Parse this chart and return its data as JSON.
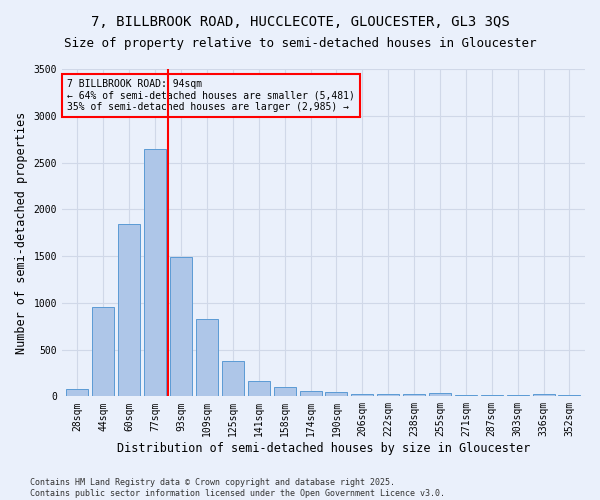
{
  "title_line1": "7, BILLBROOK ROAD, HUCCLECOTE, GLOUCESTER, GL3 3QS",
  "title_line2": "Size of property relative to semi-detached houses in Gloucester",
  "xlabel": "Distribution of semi-detached houses by size in Gloucester",
  "ylabel": "Number of semi-detached properties",
  "footnote": "Contains HM Land Registry data © Crown copyright and database right 2025.\nContains public sector information licensed under the Open Government Licence v3.0.",
  "bin_labels": [
    "28sqm",
    "44sqm",
    "60sqm",
    "77sqm",
    "93sqm",
    "109sqm",
    "125sqm",
    "141sqm",
    "158sqm",
    "174sqm",
    "190sqm",
    "206sqm",
    "222sqm",
    "238sqm",
    "255sqm",
    "271sqm",
    "287sqm",
    "303sqm",
    "336sqm",
    "352sqm"
  ],
  "bar_values": [
    80,
    950,
    1840,
    2640,
    1490,
    830,
    380,
    165,
    100,
    55,
    45,
    30,
    25,
    20,
    40,
    10,
    10,
    10,
    30,
    10
  ],
  "bar_color": "#aec6e8",
  "bar_edge_color": "#5b9bd5",
  "grid_color": "#d0d8e8",
  "background_color": "#eaf0fb",
  "vline_color": "red",
  "vline_pos": 3.5,
  "annotation_text": "7 BILLBROOK ROAD: 94sqm\n← 64% of semi-detached houses are smaller (5,481)\n35% of semi-detached houses are larger (2,985) →",
  "annotation_box_color": "red",
  "ylim": [
    0,
    3500
  ],
  "yticks": [
    0,
    500,
    1000,
    1500,
    2000,
    2500,
    3000,
    3500
  ],
  "title_fontsize": 10,
  "subtitle_fontsize": 9,
  "axis_label_fontsize": 8.5,
  "tick_fontsize": 7,
  "annotation_fontsize": 7,
  "footnote_fontsize": 6
}
